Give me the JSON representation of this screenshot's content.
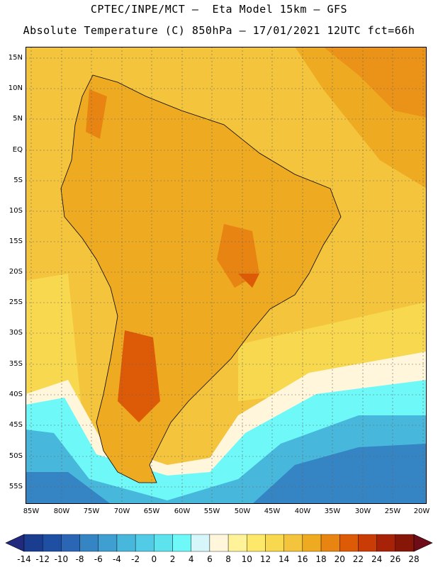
{
  "title_line1": "CPTEC/INPE/MCT –  Eta Model 15km – GFS",
  "title_line2": "Absolute Temperature (C) 850hPa – 17/01/2021 12UTC fct=66h",
  "lat_labels": [
    "15N",
    "10N",
    "5N",
    "EQ",
    "5S",
    "10S",
    "15S",
    "20S",
    "25S",
    "30S",
    "35S",
    "40S",
    "45S",
    "50S",
    "55S"
  ],
  "lon_labels": [
    "85W",
    "80W",
    "75W",
    "70W",
    "65W",
    "60W",
    "55W",
    "50W",
    "45W",
    "40W",
    "35W",
    "30W",
    "25W",
    "20W"
  ],
  "colorbar": {
    "labels": [
      "-14",
      "-12",
      "-10",
      "-8",
      "-6",
      "-4",
      "-2",
      "0",
      "2",
      "4",
      "6",
      "8",
      "10",
      "12",
      "14",
      "16",
      "18",
      "20",
      "22",
      "24",
      "26",
      "28"
    ],
    "colors": [
      "#1a3d8f",
      "#1f4fa3",
      "#2a66b4",
      "#3584c4",
      "#3f9fd0",
      "#48b7dc",
      "#52cce6",
      "#5de3ee",
      "#6ff8f8",
      "#d6f6fa",
      "#fff6dc",
      "#fff39a",
      "#fde86a",
      "#f8d84e",
      "#f3c43c",
      "#eeab22",
      "#e88412",
      "#dd5a06",
      "#c93c06",
      "#a82208",
      "#861608"
    ],
    "low_extend_color": "#222a80",
    "high_extend_color": "#6e0c18"
  },
  "colors": {
    "land_base": "#eeab22",
    "ocean_warm": "#f3c43c",
    "ocean_mid": "#f8d84e",
    "cold_sea": "#3f9fd0"
  }
}
